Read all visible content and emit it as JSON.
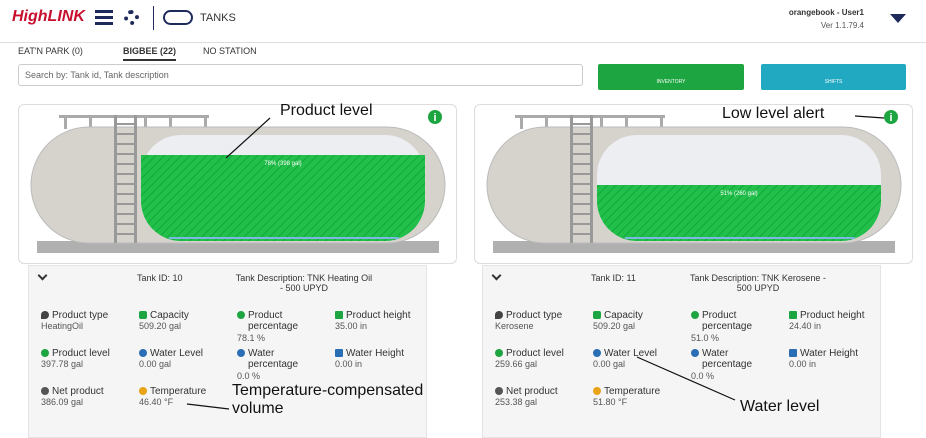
{
  "header": {
    "logo": "HighLINK",
    "title": "TANKS",
    "user": "orangebook - User1",
    "version": "Ver 1.1.79.4"
  },
  "tabs": [
    "EAT'N PARK (0)",
    "BIGBEE (22)",
    "NO STATION"
  ],
  "search_placeholder": "Search by: Tank id, Tank description",
  "buttons": [
    "INVENTORY",
    "SHIFTS"
  ],
  "tanks": [
    {
      "fill_label": "78% (398 gal)",
      "tank_id": "Tank ID: 10",
      "description": "Tank Description: TNK Heating Oil - 500 UPYD",
      "fields": [
        {
          "label": "Product type",
          "value": "HeatingOil"
        },
        {
          "label": "Capacity",
          "value": "509.20 gal"
        },
        {
          "label": "Product percentage",
          "value": "78.1 %"
        },
        {
          "label": "Product height",
          "value": "35.00 in"
        },
        {
          "label": "Product level",
          "value": "397.78 gal"
        },
        {
          "label": "Water Level",
          "value": "0.00 gal"
        },
        {
          "label": "Water percentage",
          "value": "0.0 %"
        },
        {
          "label": "Water Height",
          "value": "0.00 in"
        },
        {
          "label": "Net product",
          "value": "386.09 gal"
        },
        {
          "label": "Temperature",
          "value": "46.40 °F"
        }
      ]
    },
    {
      "fill_label": "51% (260 gal)",
      "tank_id": "Tank ID: 11",
      "description": "Tank Description: TNK Kerosene - 500 UPYD",
      "fields": [
        {
          "label": "Product type",
          "value": "Kerosene"
        },
        {
          "label": "Capacity",
          "value": "509.20 gal"
        },
        {
          "label": "Product percentage",
          "value": "51.0 %"
        },
        {
          "label": "Product height",
          "value": "24.40 in"
        },
        {
          "label": "Product level",
          "value": "259.66 gal"
        },
        {
          "label": "Water Level",
          "value": "0.00 gal"
        },
        {
          "label": "Water percentage",
          "value": "0.0 %"
        },
        {
          "label": "Water Height",
          "value": "0.00 in"
        },
        {
          "label": "Net product",
          "value": "253.38 gal"
        },
        {
          "label": "Temperature",
          "value": "51.80 °F"
        }
      ]
    }
  ],
  "annotations": [
    "Product level",
    "Low level alert",
    "Temperature-compensated volume",
    "Water level"
  ]
}
